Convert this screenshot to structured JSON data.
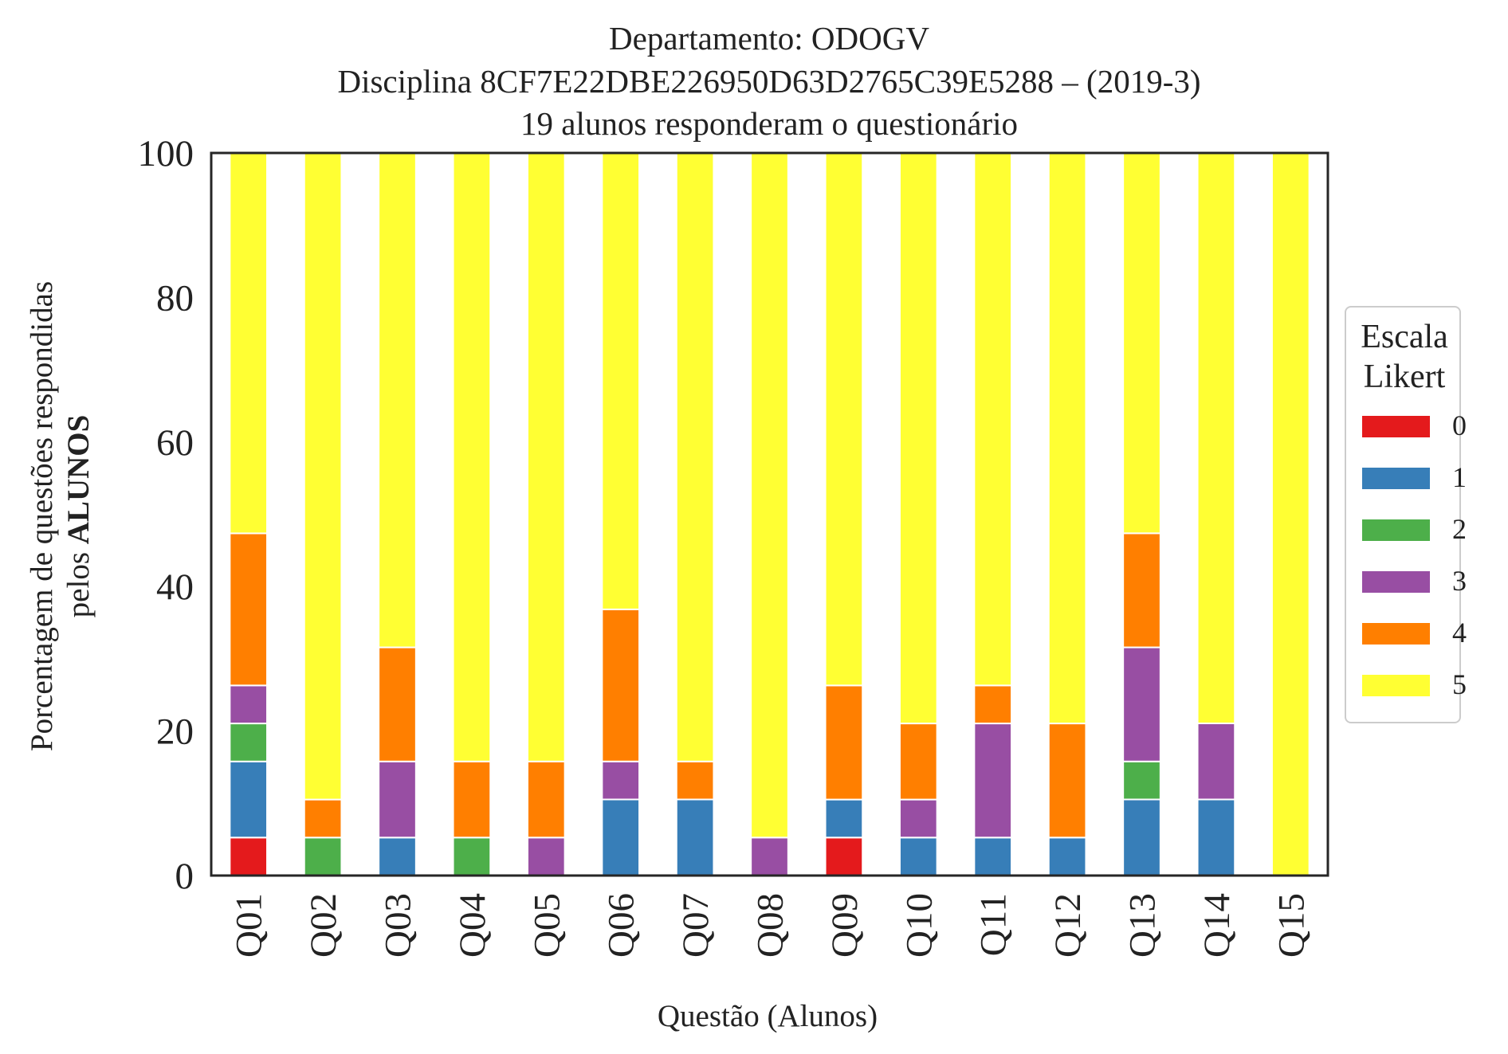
{
  "chart_data": {
    "type": "bar",
    "stacked": true,
    "title": [
      "Departamento: ODOGV",
      "Disciplina 8CF7E22DBE226950D63D2765C39E5288 – (2019-3)",
      "19 alunos responderam o questionário"
    ],
    "xlabel": "Questão (Alunos)",
    "ylabel_line1": "Porcentagem de questões respondidas",
    "ylabel_line2_prefix": "pelos ",
    "ylabel_line2_bold": "ALUNOS",
    "ylim": [
      0,
      100
    ],
    "yticks": [
      0,
      20,
      40,
      60,
      80,
      100
    ],
    "grid": false,
    "legend_position": "right",
    "legend_title": [
      "Escala",
      "Likert"
    ],
    "categories": [
      "Q01",
      "Q02",
      "Q03",
      "Q04",
      "Q05",
      "Q06",
      "Q07",
      "Q08",
      "Q09",
      "Q10",
      "Q11",
      "Q12",
      "Q13",
      "Q14",
      "Q15"
    ],
    "series": [
      {
        "name": "0",
        "color": "#e41a1c",
        "values": [
          5.26,
          0,
          0,
          0,
          0,
          0,
          0,
          0,
          5.26,
          0,
          0,
          0,
          0,
          0,
          0
        ]
      },
      {
        "name": "1",
        "color": "#377eb8",
        "values": [
          10.53,
          0,
          5.26,
          0,
          0,
          10.53,
          10.53,
          0,
          5.26,
          5.26,
          5.26,
          5.26,
          10.53,
          10.53,
          0
        ]
      },
      {
        "name": "2",
        "color": "#4daf4a",
        "values": [
          5.26,
          5.26,
          0,
          5.26,
          0,
          0,
          0,
          0,
          0,
          0,
          0,
          0,
          5.26,
          0,
          0
        ]
      },
      {
        "name": "3",
        "color": "#984ea3",
        "values": [
          5.26,
          0,
          10.53,
          0,
          5.26,
          5.26,
          0,
          5.26,
          0,
          5.26,
          15.79,
          0,
          15.79,
          10.53,
          0
        ]
      },
      {
        "name": "4",
        "color": "#ff7f00",
        "values": [
          21.05,
          5.26,
          15.79,
          10.53,
          10.53,
          21.05,
          5.26,
          0,
          15.79,
          10.53,
          5.26,
          15.79,
          15.79,
          0,
          0
        ]
      },
      {
        "name": "5",
        "color": "#ffff33",
        "values": [
          52.63,
          89.47,
          68.42,
          84.21,
          84.21,
          63.16,
          84.21,
          94.74,
          73.68,
          78.95,
          73.68,
          78.95,
          52.63,
          78.95,
          100
        ]
      }
    ]
  }
}
